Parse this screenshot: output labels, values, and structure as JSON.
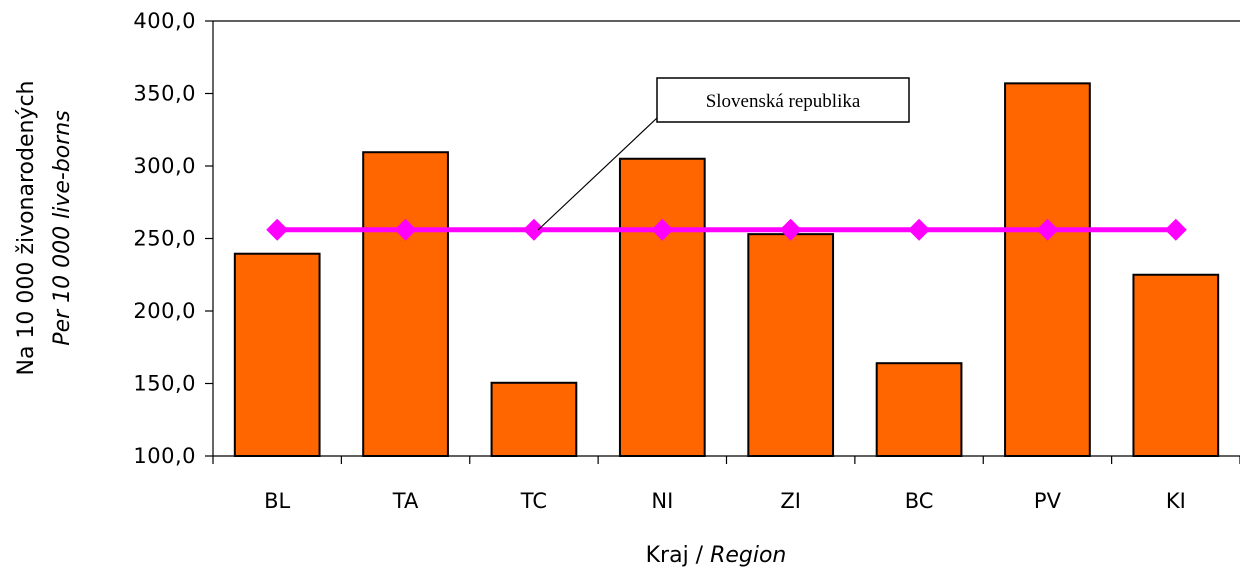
{
  "chart_data": {
    "type": "bar",
    "categories": [
      "BL",
      "TA",
      "TC",
      "NI",
      "ZI",
      "BC",
      "PV",
      "KI"
    ],
    "series": [
      {
        "type": "bar",
        "color": "#ff6600",
        "values": [
          239.5,
          309.5,
          150.5,
          305.0,
          253.0,
          164.0,
          357.0,
          225.0
        ]
      },
      {
        "name": "Slovenská republika",
        "type": "line",
        "color": "#ff00ff",
        "values": [
          256.0,
          256.0,
          256.0,
          256.0,
          256.0,
          256.0,
          256.0,
          256.0
        ]
      }
    ],
    "ylim": [
      100,
      400
    ],
    "yticks": [
      "100,0",
      "150,0",
      "200,0",
      "250,0",
      "300,0",
      "350,0",
      "400,0"
    ],
    "ylabel": "Na 10 000 živonarodených",
    "ylabel_italic": "Per 10 000 live-borns",
    "xlabel": "Kraj / ",
    "xlabel_italic": "Region",
    "annotation": "Slovenská republika",
    "grid": false
  }
}
